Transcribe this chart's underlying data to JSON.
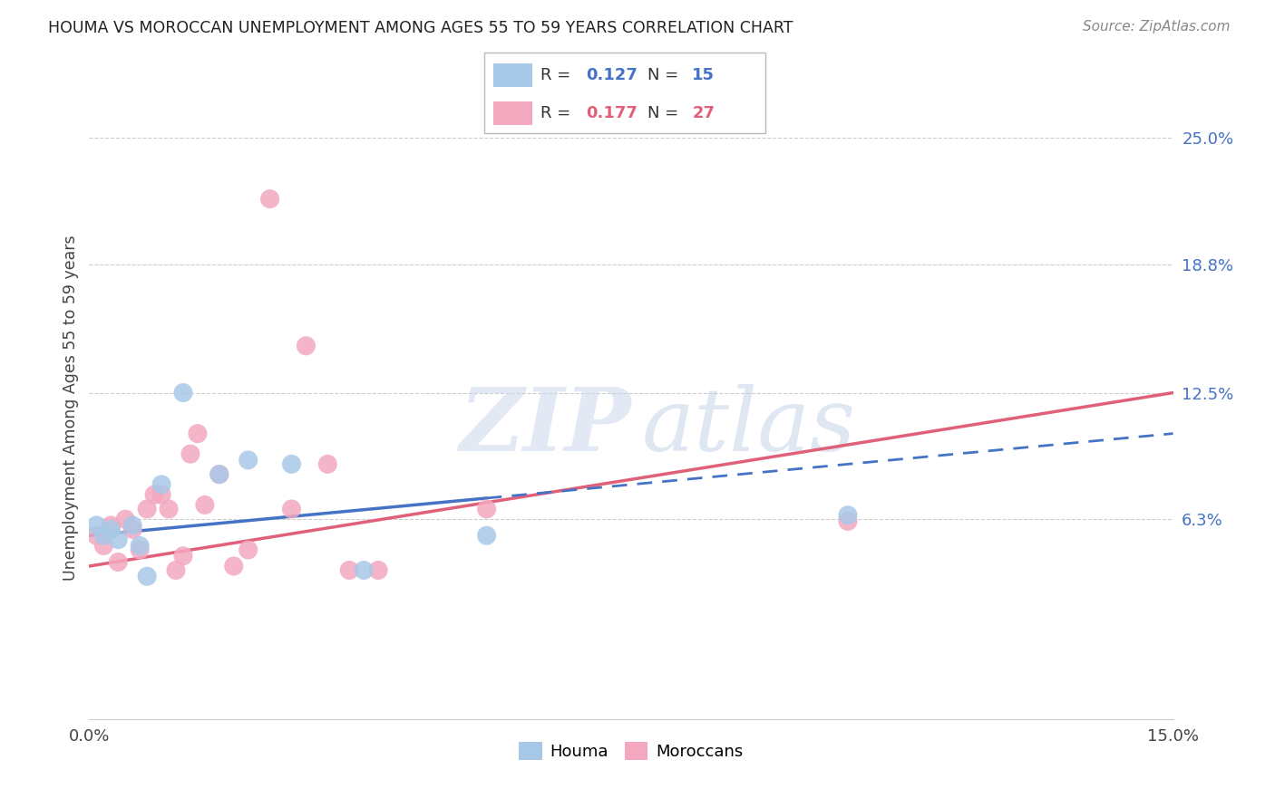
{
  "title": "HOUMA VS MOROCCAN UNEMPLOYMENT AMONG AGES 55 TO 59 YEARS CORRELATION CHART",
  "source": "Source: ZipAtlas.com",
  "ylabel": "Unemployment Among Ages 55 to 59 years",
  "xlim": [
    0.0,
    0.15
  ],
  "ylim": [
    -0.035,
    0.27
  ],
  "houma_R": "0.127",
  "houma_N": "15",
  "moroccan_R": "0.177",
  "moroccan_N": "27",
  "houma_color": "#a8c8e8",
  "moroccan_color": "#f4a8c0",
  "houma_line_color": "#4472c4",
  "moroccan_line_color": "#e0607a",
  "ytick_values": [
    0.063,
    0.125,
    0.188,
    0.25
  ],
  "ytick_labels": [
    "6.3%",
    "12.5%",
    "18.8%",
    "25.0%"
  ],
  "houma_x": [
    0.001,
    0.002,
    0.003,
    0.004,
    0.006,
    0.007,
    0.008,
    0.01,
    0.013,
    0.018,
    0.022,
    0.028,
    0.038,
    0.055,
    0.105
  ],
  "houma_y": [
    0.06,
    0.055,
    0.058,
    0.053,
    0.06,
    0.05,
    0.035,
    0.08,
    0.125,
    0.085,
    0.092,
    0.09,
    0.038,
    0.055,
    0.065
  ],
  "moroccan_x": [
    0.001,
    0.002,
    0.003,
    0.004,
    0.005,
    0.006,
    0.007,
    0.008,
    0.009,
    0.01,
    0.011,
    0.012,
    0.013,
    0.014,
    0.015,
    0.016,
    0.018,
    0.02,
    0.022,
    0.025,
    0.028,
    0.03,
    0.033,
    0.036,
    0.04,
    0.055,
    0.105
  ],
  "moroccan_y": [
    0.055,
    0.05,
    0.06,
    0.042,
    0.063,
    0.058,
    0.048,
    0.068,
    0.075,
    0.075,
    0.068,
    0.038,
    0.045,
    0.095,
    0.105,
    0.07,
    0.085,
    0.04,
    0.048,
    0.22,
    0.068,
    0.148,
    0.09,
    0.038,
    0.038,
    0.068,
    0.062
  ],
  "houma_line_x0": 0.0,
  "houma_line_x_solid_end": 0.055,
  "houma_line_x1": 0.15,
  "houma_line_y0": 0.055,
  "houma_line_y1": 0.105,
  "moroccan_line_x0": 0.0,
  "moroccan_line_x1": 0.15,
  "moroccan_line_y0": 0.04,
  "moroccan_line_y1": 0.125
}
